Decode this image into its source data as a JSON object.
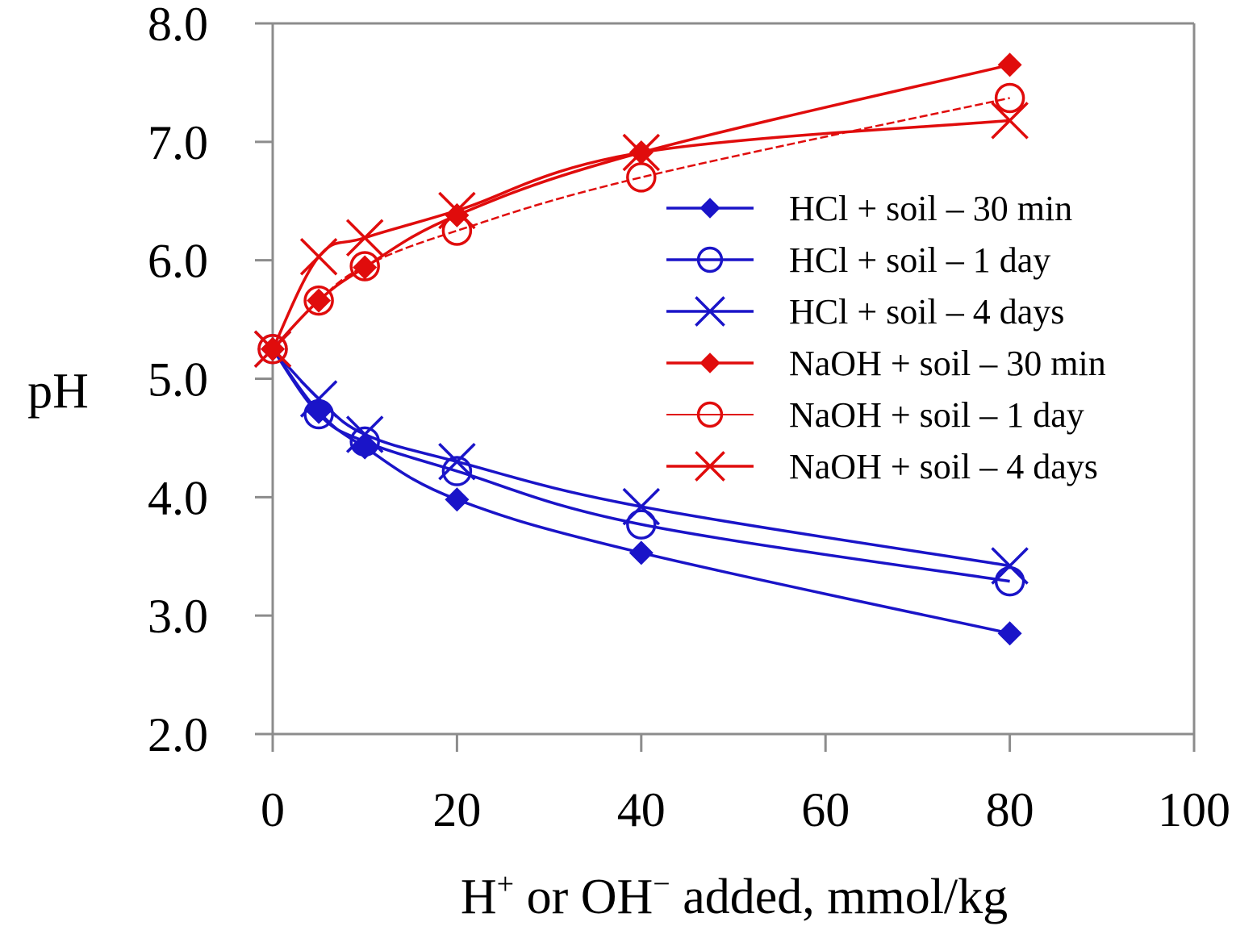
{
  "chart_data": {
    "type": "line",
    "title": "",
    "xlabel": {
      "prefix_h": "H",
      "plus_sup": "+",
      "mid": " or OH",
      "minus_sup": "−",
      "suffix": " added, mmol/kg"
    },
    "ylabel": "pH",
    "xlim": [
      0,
      100
    ],
    "ylim": [
      2.0,
      8.0
    ],
    "x_ticks": [
      0,
      20,
      40,
      60,
      80,
      100
    ],
    "x_tick_labels": [
      "0",
      "20",
      "40",
      "60",
      "80",
      "100"
    ],
    "y_ticks": [
      2,
      3,
      4,
      5,
      6,
      7,
      8
    ],
    "y_tick_labels": [
      "2.0",
      "3.0",
      "4.0",
      "5.0",
      "6.0",
      "7.0",
      "8.0"
    ],
    "grid": false,
    "legend_position": "right-center",
    "colors": {
      "hcl": "#1a14c8",
      "naoh": "#e00c0c",
      "axis": "#8c8c8c"
    },
    "series": [
      {
        "name": "HCl + soil – 30 min",
        "color": "#1a14c8",
        "marker": "diamond",
        "line": "solid",
        "x": [
          0,
          5,
          10,
          20,
          40,
          80
        ],
        "y": [
          5.25,
          4.72,
          4.42,
          3.98,
          3.53,
          2.85
        ]
      },
      {
        "name": "HCl + soil – 1 day",
        "color": "#1a14c8",
        "marker": "circle",
        "line": "solid",
        "x": [
          0,
          5,
          10,
          20,
          40,
          80
        ],
        "y": [
          5.25,
          4.7,
          4.47,
          4.22,
          3.77,
          3.29
        ]
      },
      {
        "name": "HCl + soil – 4 days",
        "color": "#1a14c8",
        "marker": "x",
        "line": "solid",
        "x": [
          0,
          5,
          10,
          20,
          40,
          80
        ],
        "y": [
          5.25,
          4.83,
          4.53,
          4.3,
          3.92,
          3.42
        ]
      },
      {
        "name": "NaOH + soil – 30 min",
        "color": "#e00c0c",
        "marker": "diamond",
        "line": "solid",
        "x": [
          0,
          5,
          10,
          20,
          40,
          80
        ],
        "y": [
          5.25,
          5.66,
          5.94,
          6.38,
          6.91,
          7.65
        ]
      },
      {
        "name": "NaOH + soil – 1 day",
        "color": "#e00c0c",
        "marker": "circle",
        "line": "dashed",
        "x": [
          0,
          5,
          10,
          20,
          40,
          80
        ],
        "y": [
          5.25,
          5.66,
          5.95,
          6.25,
          6.7,
          7.37
        ]
      },
      {
        "name": "NaOH + soil – 4 days",
        "color": "#e00c0c",
        "marker": "x",
        "line": "solid",
        "x": [
          0,
          5,
          10,
          20,
          40,
          80
        ],
        "y": [
          5.25,
          6.03,
          6.19,
          6.42,
          6.91,
          7.18
        ]
      }
    ]
  }
}
